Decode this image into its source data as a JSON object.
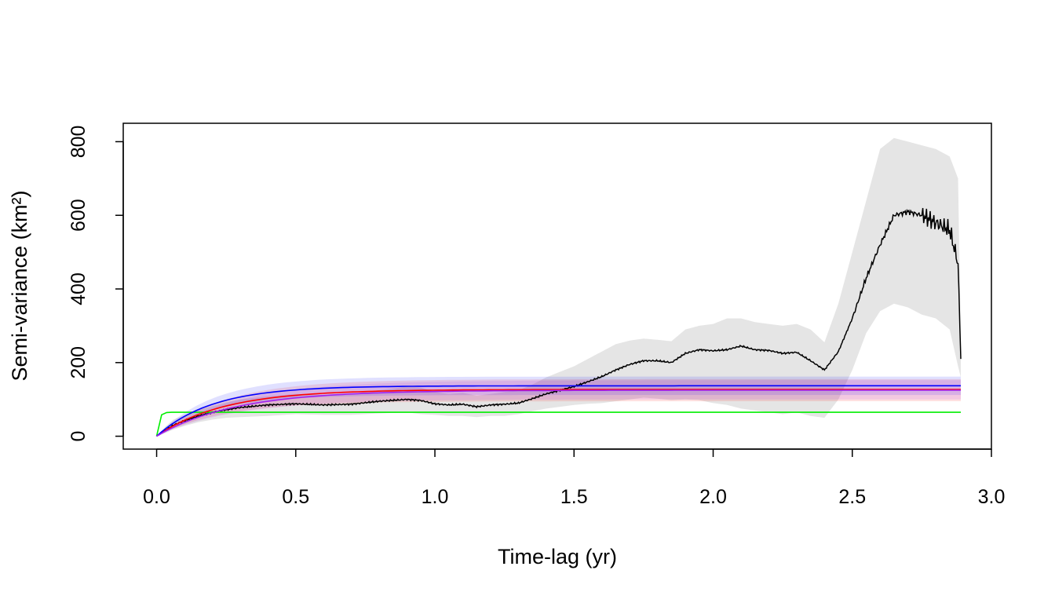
{
  "chart_data": {
    "type": "line",
    "title": "",
    "xlabel": "Time-lag (yr)",
    "ylabel": "Semi-variance (km²)",
    "xlim": [
      -0.12,
      3.0
    ],
    "ylim": [
      -35,
      850
    ],
    "x_ticks": [
      {
        "value": 0.0,
        "label": "0.0"
      },
      {
        "value": 0.5,
        "label": "0.5"
      },
      {
        "value": 1.0,
        "label": "1.0"
      },
      {
        "value": 1.5,
        "label": "1.5"
      },
      {
        "value": 2.0,
        "label": "2.0"
      },
      {
        "value": 2.5,
        "label": "2.5"
      },
      {
        "value": 3.0,
        "label": "3.0"
      }
    ],
    "y_ticks": [
      {
        "value": 0,
        "label": "0"
      },
      {
        "value": 200,
        "label": "200"
      },
      {
        "value": 400,
        "label": "400"
      },
      {
        "value": 600,
        "label": "600"
      },
      {
        "value": 800,
        "label": "800"
      }
    ],
    "grid": false,
    "legend": "none",
    "empirical": {
      "color": "#000000",
      "band_color": "#e5e5e5",
      "x": [
        0,
        0.03,
        0.06,
        0.1,
        0.15,
        0.2,
        0.25,
        0.3,
        0.4,
        0.5,
        0.6,
        0.7,
        0.8,
        0.9,
        0.95,
        1.0,
        1.05,
        1.1,
        1.15,
        1.2,
        1.25,
        1.3,
        1.35,
        1.4,
        1.45,
        1.5,
        1.55,
        1.6,
        1.65,
        1.7,
        1.75,
        1.8,
        1.85,
        1.9,
        1.95,
        2.0,
        2.05,
        2.1,
        2.15,
        2.2,
        2.25,
        2.3,
        2.35,
        2.4,
        2.45,
        2.5,
        2.55,
        2.6,
        2.65,
        2.7,
        2.75,
        2.8,
        2.85,
        2.88,
        2.89
      ],
      "y": [
        0,
        15,
        30,
        42,
        55,
        65,
        72,
        78,
        85,
        88,
        85,
        87,
        95,
        100,
        97,
        88,
        85,
        87,
        80,
        85,
        87,
        90,
        102,
        115,
        125,
        135,
        148,
        162,
        180,
        195,
        205,
        205,
        200,
        225,
        235,
        232,
        235,
        245,
        235,
        233,
        225,
        228,
        205,
        180,
        230,
        320,
        430,
        520,
        600,
        610,
        600,
        580,
        560,
        470,
        210
      ],
      "band_lower": [
        0,
        8,
        18,
        28,
        38,
        45,
        50,
        52,
        55,
        60,
        58,
        58,
        62,
        65,
        60,
        58,
        55,
        55,
        52,
        55,
        55,
        60,
        68,
        75,
        80,
        85,
        88,
        90,
        95,
        100,
        105,
        102,
        98,
        100,
        98,
        90,
        85,
        75,
        70,
        65,
        60,
        65,
        55,
        50,
        100,
        180,
        280,
        340,
        360,
        350,
        330,
        320,
        290,
        190,
        160
      ],
      "band_upper": [
        0,
        25,
        45,
        58,
        72,
        82,
        92,
        100,
        108,
        115,
        112,
        115,
        125,
        135,
        132,
        120,
        115,
        118,
        110,
        115,
        120,
        125,
        140,
        160,
        175,
        190,
        210,
        230,
        250,
        260,
        265,
        262,
        258,
        290,
        300,
        305,
        320,
        320,
        310,
        305,
        300,
        305,
        290,
        255,
        360,
        500,
        640,
        780,
        810,
        800,
        790,
        780,
        760,
        700,
        260
      ]
    },
    "series": [
      {
        "color": "#00ee00",
        "band_color": null,
        "tau": 0.008,
        "sill": 65,
        "band": null
      },
      {
        "color": "#ff0000",
        "band_color": "#ff0000",
        "tau": 0.24,
        "sill": 127,
        "band": [
          95,
          155
        ]
      },
      {
        "color": "#0000ff",
        "band_color": "#0000ff",
        "tau": 0.2,
        "sill": 137,
        "band": [
          112,
          162
        ]
      },
      {
        "color": "#a020f0",
        "band_color": "#a020f0",
        "tau": 0.28,
        "sill": 125,
        "band": [
          100,
          152
        ]
      }
    ]
  }
}
